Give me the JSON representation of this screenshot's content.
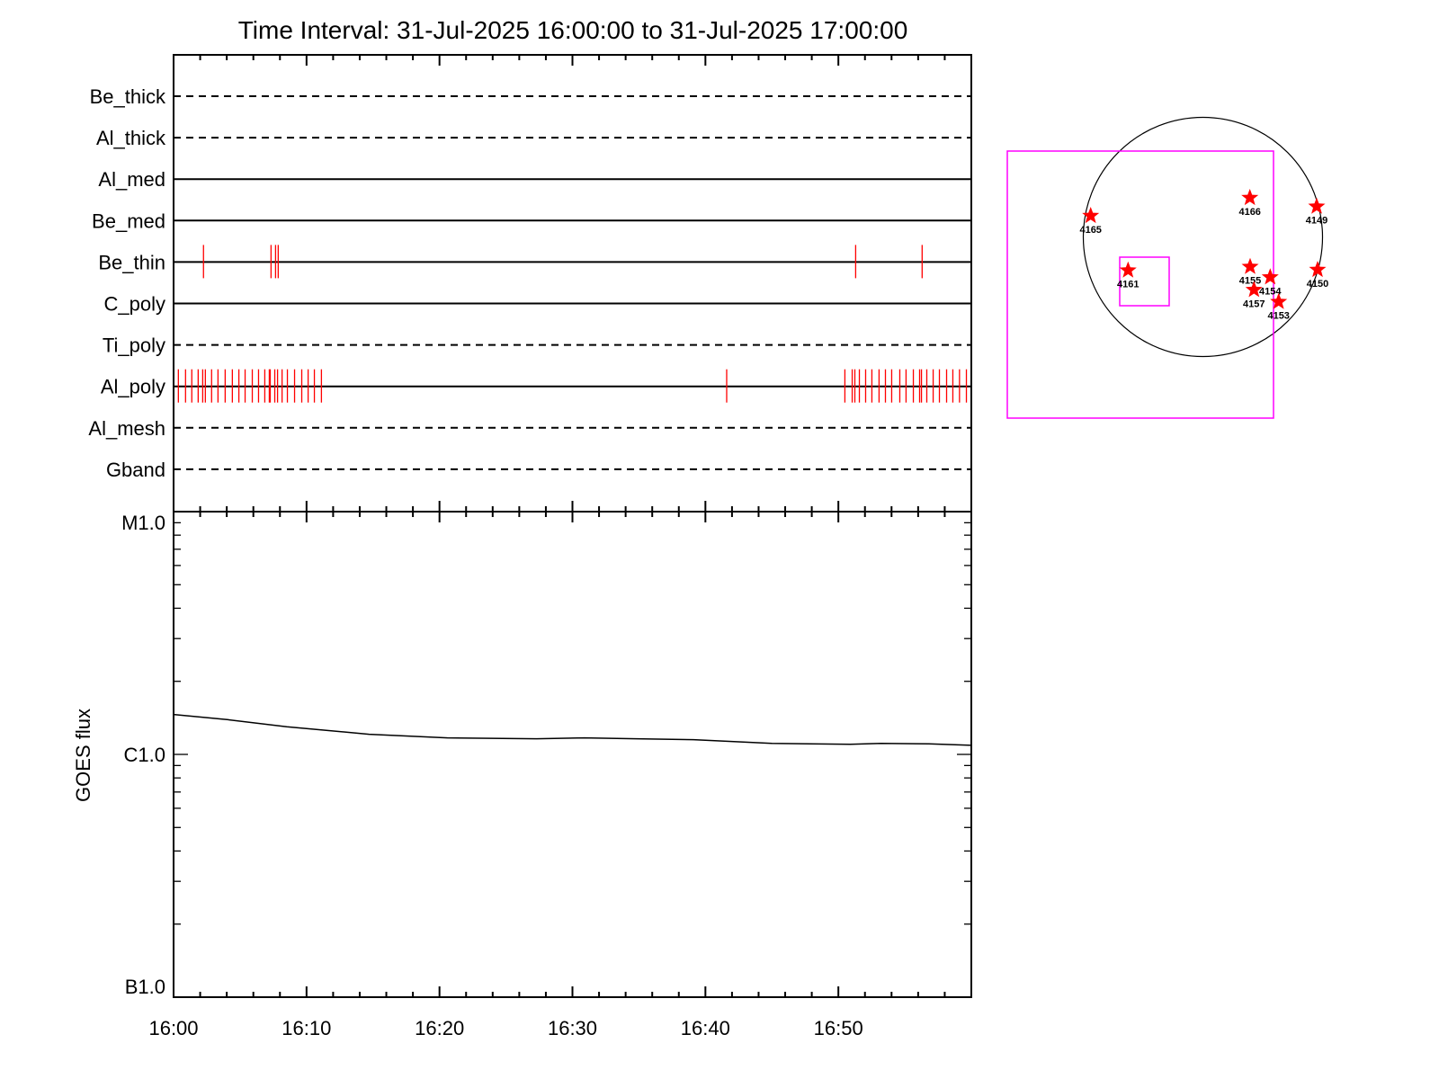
{
  "chart_data": [
    {
      "type": "timeline",
      "title": "Time Interval: 31-Jul-2025 16:00:00 to 31-Jul-2025 17:00:00",
      "x_range_minutes_after_16_00": [
        0,
        60
      ],
      "x_tick_labels": [
        "16:00",
        "16:10",
        "16:20",
        "16:30",
        "16:40",
        "16:50"
      ],
      "rows": [
        {
          "name": "Be_thick",
          "line": "dashed",
          "events_min": []
        },
        {
          "name": "Al_thick",
          "line": "dashed",
          "events_min": []
        },
        {
          "name": "Al_med",
          "line": "solid",
          "events_min": []
        },
        {
          "name": "Be_med",
          "line": "solid",
          "events_min": []
        },
        {
          "name": "Be_thin",
          "line": "solid",
          "events_min": [
            2.25,
            7.33,
            7.67,
            7.87,
            51.3,
            56.3
          ]
        },
        {
          "name": "C_poly",
          "line": "solid",
          "events_min": []
        },
        {
          "name": "Ti_poly",
          "line": "dashed",
          "events_min": []
        },
        {
          "name": "Al_poly",
          "line": "solid",
          "events_min": [
            0.36,
            0.9,
            1.37,
            1.85,
            2.19,
            2.39,
            2.86,
            3.34,
            3.88,
            4.42,
            4.91,
            5.38,
            5.92,
            6.39,
            6.86,
            7.2,
            7.27,
            7.61,
            7.82,
            8.16,
            8.56,
            9.1,
            9.64,
            10.12,
            10.59,
            11.12,
            41.6,
            50.49,
            51.04,
            51.24,
            51.58,
            52.05,
            52.52,
            53.06,
            53.54,
            54.01,
            54.62,
            55.09,
            55.64,
            56.11,
            56.25,
            56.65,
            57.13,
            57.6,
            58.14,
            58.61,
            59.11,
            59.63
          ]
        },
        {
          "name": "Al_mesh",
          "line": "dashed",
          "events_min": []
        },
        {
          "name": "Gband",
          "line": "dashed",
          "events_min": []
        }
      ],
      "event_color": "#ff0000"
    },
    {
      "type": "line",
      "ylabel": "GOES flux",
      "y_scale": "log",
      "ylim": [
        1e-07,
        1e-05
      ],
      "y_tick_labels": [
        {
          "label": "M1.0",
          "value": 1e-05
        },
        {
          "label": "C1.0",
          "value": 1e-06
        },
        {
          "label": "B1.0",
          "value": 1e-07
        }
      ],
      "x_range_minutes_after_16_00": [
        0,
        60
      ],
      "x": [
        0,
        4.1,
        8.5,
        14.7,
        20.6,
        27.3,
        30.9,
        34.8,
        39.1,
        45.0,
        50.9,
        53.2,
        56.8,
        60
      ],
      "y": [
        1.46e-06,
        1.39e-06,
        1.3e-06,
        1.21e-06,
        1.17e-06,
        1.16e-06,
        1.17e-06,
        1.16e-06,
        1.15e-06,
        1.11e-06,
        1.1e-06,
        1.11e-06,
        1.105e-06,
        1.09e-06
      ]
    },
    {
      "type": "scatter",
      "description_kind": "solar disk map",
      "regions": [
        "4165",
        "4166",
        "4149",
        "4161",
        "4155",
        "4154",
        "4157",
        "4153",
        "4150"
      ],
      "marker_color": "#ff0000",
      "box_color": "#ff00ff",
      "disk_color": "#000000"
    }
  ]
}
